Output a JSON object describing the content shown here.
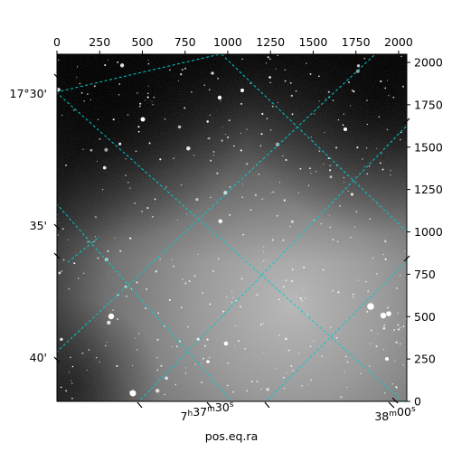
{
  "chart_data": {
    "type": "heatmap",
    "title": "",
    "xlabel": "pos.eq.ra",
    "ylabel": "",
    "colormap": "gray",
    "grid": true,
    "grid_color": "#00cccc",
    "pixel_axes": {
      "x_ticks": [
        "0",
        "250",
        "500",
        "750",
        "1000",
        "1250",
        "1500",
        "1750",
        "2000"
      ],
      "y_ticks": [
        "0",
        "250",
        "500",
        "750",
        "1000",
        "1250",
        "1500",
        "1750",
        "2000"
      ],
      "xlim": [
        0,
        2048
      ],
      "ylim": [
        0,
        2048
      ]
    },
    "world_axes": {
      "ra_ticks": [
        {
          "label": "7h37m30s",
          "hours": 7,
          "minutes": 37,
          "seconds": 30
        },
        {
          "label": "7h38m00s",
          "hours": 7,
          "minutes": 38,
          "seconds": 0
        }
      ],
      "dec_ticks": [
        "17°30'",
        "35'",
        "40'"
      ]
    }
  }
}
